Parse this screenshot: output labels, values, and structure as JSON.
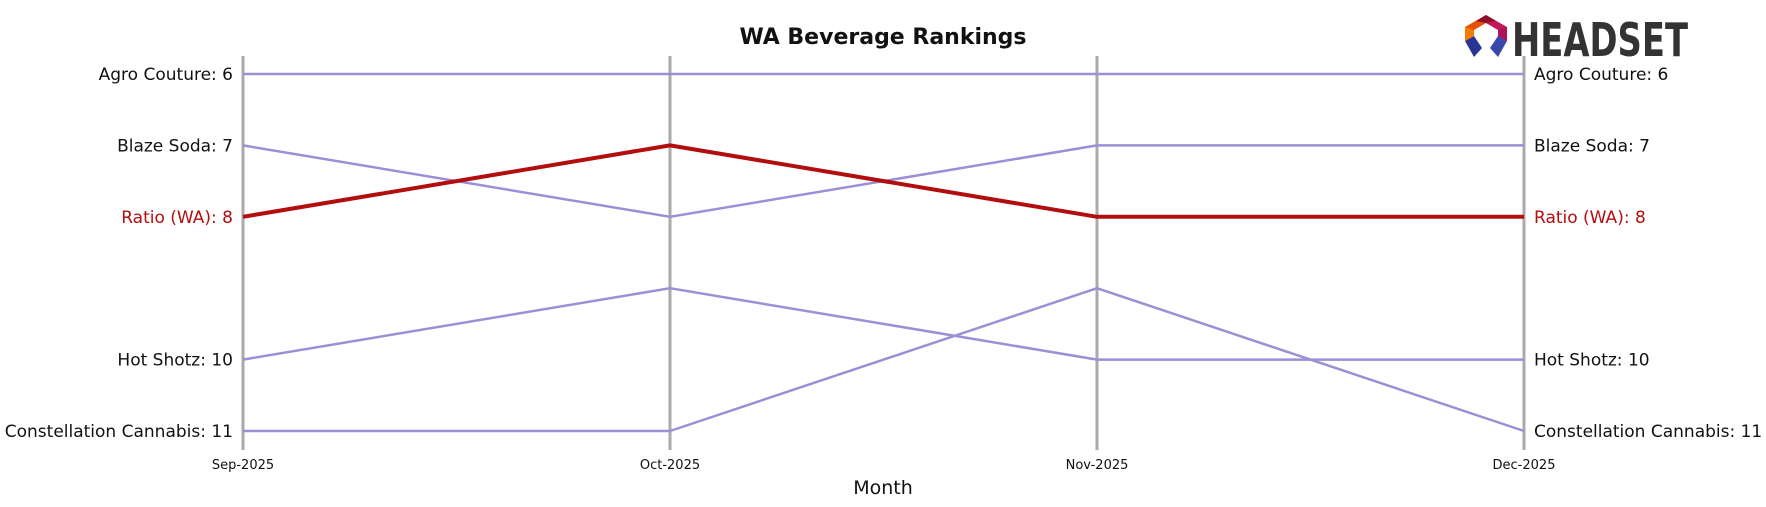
{
  "chart_data": {
    "type": "line",
    "title": "WA Beverage Rankings",
    "xlabel": "Month",
    "ylabel": "",
    "x": [
      "Sep-2025",
      "Oct-2025",
      "Nov-2025",
      "Dec-2025"
    ],
    "ylim": [
      11,
      6
    ],
    "y_inverted": true,
    "grid": false,
    "series": [
      {
        "name": "Agro Couture",
        "values": [
          6,
          6,
          6,
          6
        ],
        "color": "#9b8fd6",
        "highlight": false
      },
      {
        "name": "Blaze Soda",
        "values": [
          7,
          8,
          7,
          7
        ],
        "color": "#9b8fd6",
        "highlight": false
      },
      {
        "name": "Ratio (WA)",
        "values": [
          8,
          7,
          8,
          8
        ],
        "color": "#b30e0e",
        "highlight": true
      },
      {
        "name": "Hot Shotz",
        "values": [
          10,
          9,
          10,
          10
        ],
        "color": "#9b8fd6",
        "highlight": false
      },
      {
        "name": "Constellation Cannabis",
        "values": [
          11,
          11,
          9,
          11
        ],
        "color": "#9b8fd6",
        "highlight": false
      }
    ],
    "left_labels": [
      {
        "text": "Agro Couture: 6",
        "rank": 6,
        "highlight": false
      },
      {
        "text": "Blaze Soda: 7",
        "rank": 7,
        "highlight": false
      },
      {
        "text": "Ratio (WA): 8",
        "rank": 8,
        "highlight": true
      },
      {
        "text": "Hot Shotz: 10",
        "rank": 10,
        "highlight": false
      },
      {
        "text": "Constellation Cannabis: 11",
        "rank": 11,
        "highlight": false
      }
    ],
    "right_labels": [
      {
        "text": "Agro Couture: 6",
        "rank": 6,
        "highlight": false
      },
      {
        "text": "Blaze Soda: 7",
        "rank": 7,
        "highlight": false
      },
      {
        "text": "Ratio (WA): 8",
        "rank": 8,
        "highlight": true
      },
      {
        "text": "Hot Shotz: 10",
        "rank": 10,
        "highlight": false
      },
      {
        "text": "Constellation Cannabis: 11",
        "rank": 11,
        "highlight": false
      }
    ]
  },
  "logo": {
    "text": "HEADSET"
  },
  "colors": {
    "axis_line": "#aaaaaa",
    "label_default": "#111111",
    "label_highlight": "#b30e0e"
  }
}
